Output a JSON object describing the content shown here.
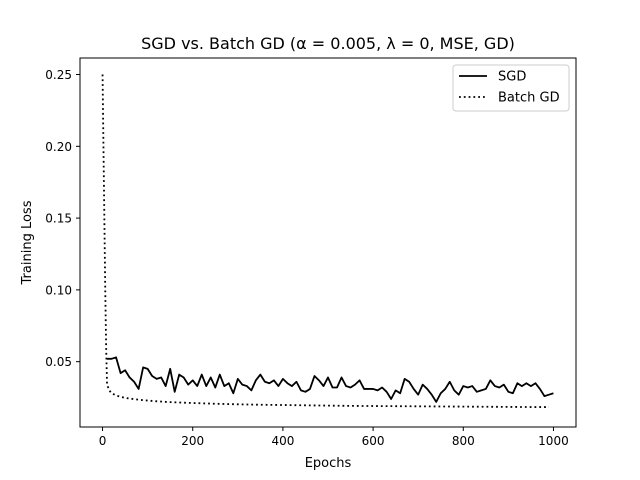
{
  "chart_data": {
    "type": "line",
    "title": "SGD vs. Batch GD (α = 0.005, λ = 0, MSE, GD)",
    "xlabel": "Epochs",
    "ylabel": "Training Loss",
    "xlim": [
      -50,
      1050
    ],
    "ylim": [
      0.0045,
      0.2615
    ],
    "xticks": [
      0,
      200,
      400,
      600,
      800,
      1000
    ],
    "yticks": [
      0.05,
      0.1,
      0.15,
      0.2,
      0.25
    ],
    "grid": false,
    "legend_position": "top-right",
    "series": [
      {
        "name": "SGD",
        "style": "solid",
        "color": "#000000",
        "x": [
          10,
          20,
          30,
          40,
          50,
          60,
          70,
          80,
          90,
          100,
          110,
          120,
          130,
          140,
          150,
          160,
          170,
          180,
          190,
          200,
          210,
          220,
          230,
          240,
          250,
          260,
          270,
          280,
          290,
          300,
          310,
          320,
          330,
          340,
          350,
          360,
          370,
          380,
          390,
          400,
          410,
          420,
          430,
          440,
          450,
          460,
          470,
          480,
          490,
          500,
          510,
          520,
          530,
          540,
          550,
          560,
          570,
          580,
          590,
          600,
          610,
          620,
          630,
          640,
          650,
          660,
          670,
          680,
          690,
          700,
          710,
          720,
          730,
          740,
          750,
          760,
          770,
          780,
          790,
          800,
          810,
          820,
          830,
          840,
          850,
          860,
          870,
          880,
          890,
          900,
          910,
          920,
          930,
          940,
          950,
          960,
          970,
          980,
          990,
          1000
        ],
        "y": [
          0.052,
          0.052,
          0.053,
          0.042,
          0.044,
          0.039,
          0.036,
          0.031,
          0.046,
          0.045,
          0.04,
          0.038,
          0.039,
          0.033,
          0.045,
          0.029,
          0.041,
          0.039,
          0.034,
          0.037,
          0.033,
          0.041,
          0.033,
          0.039,
          0.032,
          0.041,
          0.033,
          0.035,
          0.028,
          0.038,
          0.034,
          0.033,
          0.03,
          0.037,
          0.041,
          0.036,
          0.035,
          0.037,
          0.033,
          0.038,
          0.035,
          0.033,
          0.036,
          0.03,
          0.029,
          0.031,
          0.04,
          0.037,
          0.033,
          0.039,
          0.032,
          0.032,
          0.039,
          0.033,
          0.032,
          0.034,
          0.037,
          0.031,
          0.031,
          0.031,
          0.03,
          0.032,
          0.029,
          0.024,
          0.03,
          0.028,
          0.038,
          0.036,
          0.031,
          0.027,
          0.034,
          0.031,
          0.027,
          0.022,
          0.028,
          0.031,
          0.036,
          0.03,
          0.027,
          0.033,
          0.032,
          0.033,
          0.029,
          0.03,
          0.031,
          0.037,
          0.033,
          0.032,
          0.034,
          0.029,
          0.028,
          0.035,
          0.033,
          0.035,
          0.033,
          0.035,
          0.031,
          0.026,
          0.027,
          0.028
        ]
      },
      {
        "name": "Batch GD",
        "style": "dotted",
        "color": "#000000",
        "x": [
          0,
          2,
          4,
          6,
          8,
          10,
          15,
          20,
          30,
          40,
          50,
          60,
          80,
          100,
          120,
          150,
          200,
          250,
          300,
          350,
          400,
          450,
          500,
          550,
          600,
          650,
          700,
          750,
          800,
          850,
          900,
          950,
          990
        ],
        "y": [
          0.25,
          0.2,
          0.15,
          0.1,
          0.06,
          0.034,
          0.03,
          0.028,
          0.0265,
          0.0255,
          0.0248,
          0.0243,
          0.0235,
          0.0229,
          0.0224,
          0.0218,
          0.0212,
          0.0207,
          0.0203,
          0.02,
          0.0198,
          0.0196,
          0.0194,
          0.0192,
          0.0191,
          0.019,
          0.0189,
          0.0188,
          0.0187,
          0.0186,
          0.0185,
          0.0184,
          0.0184
        ]
      }
    ]
  }
}
